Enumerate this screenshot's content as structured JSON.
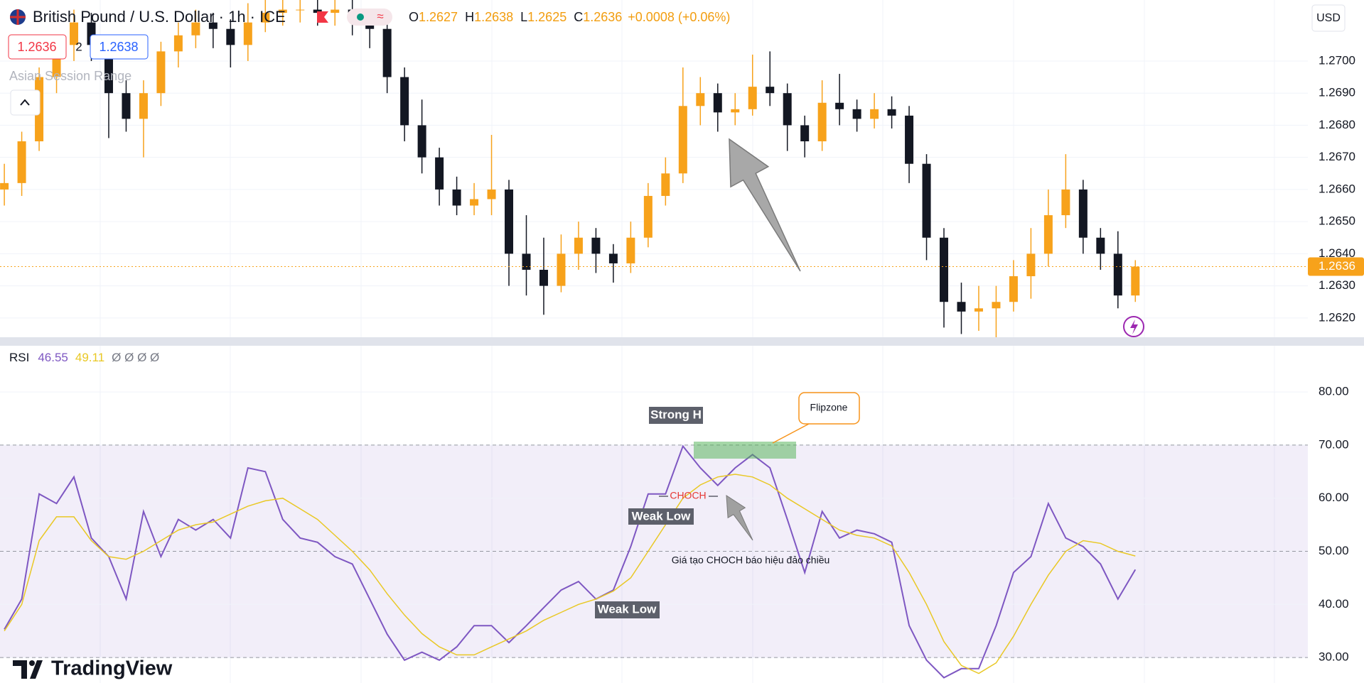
{
  "header": {
    "symbol": "British Pound / U.S. Dollar · 1h · ICE",
    "open_label": "O",
    "high_label": "H",
    "low_label": "L",
    "close_label": "C",
    "change": "+0.0008 (+0.06%)",
    "spread": "2",
    "buy": "1.2638",
    "indicator_name": "Asian Session Range",
    "currency": "USD"
  },
  "chart_data": [
    {
      "type": "candlestick",
      "up_color": "#f7a21b",
      "down_color": "#131722",
      "ylim": [
        1.2614,
        1.2719
      ],
      "grid": true,
      "yticks": [
        {
          "value": 1.262,
          "label": "1.2620"
        },
        {
          "value": 1.263,
          "label": "1.2630"
        },
        {
          "value": 1.264,
          "label": "1.2640"
        },
        {
          "value": 1.265,
          "label": "1.2650"
        },
        {
          "value": 1.266,
          "label": "1.2660"
        },
        {
          "value": 1.267,
          "label": "1.2670"
        },
        {
          "value": 1.268,
          "label": "1.2680"
        },
        {
          "value": 1.269,
          "label": "1.2690"
        },
        {
          "value": 1.27,
          "label": "1.2700"
        }
      ],
      "ohlc": [
        [
          1.266,
          1.2668,
          1.2655,
          1.2662
        ],
        [
          1.2662,
          1.2678,
          1.2658,
          1.2675
        ],
        [
          1.2675,
          1.2698,
          1.2672,
          1.2695
        ],
        [
          1.2695,
          1.2708,
          1.269,
          1.2705
        ],
        [
          1.2705,
          1.2716,
          1.27,
          1.2712
        ],
        [
          1.2712,
          1.2715,
          1.27,
          1.2705
        ],
        [
          1.2705,
          1.2708,
          1.2676,
          1.269
        ],
        [
          1.269,
          1.2694,
          1.2678,
          1.2682
        ],
        [
          1.2682,
          1.2694,
          1.267,
          1.269
        ],
        [
          1.269,
          1.2706,
          1.2686,
          1.2703
        ],
        [
          1.2703,
          1.2712,
          1.2698,
          1.2708
        ],
        [
          1.2708,
          1.2716,
          1.2704,
          1.2712
        ],
        [
          1.2712,
          1.2715,
          1.2704,
          1.271
        ],
        [
          1.271,
          1.2713,
          1.2698,
          1.2705
        ],
        [
          1.2705,
          1.2718,
          1.27,
          1.2712
        ],
        [
          1.2712,
          1.2722,
          1.2709,
          1.2715
        ],
        [
          1.2715,
          1.2722,
          1.2711,
          1.2716
        ],
        [
          1.2716,
          1.2722,
          1.2712,
          1.2716
        ],
        [
          1.2716,
          1.272,
          1.2711,
          1.2715
        ],
        [
          1.2715,
          1.2722,
          1.2711,
          1.2716
        ],
        [
          1.2716,
          1.2719,
          1.2708,
          1.2713
        ],
        [
          1.2713,
          1.2716,
          1.2704,
          1.271
        ],
        [
          1.271,
          1.2712,
          1.269,
          1.2695
        ],
        [
          1.2695,
          1.2698,
          1.2675,
          1.268
        ],
        [
          1.268,
          1.2688,
          1.2665,
          1.267
        ],
        [
          1.267,
          1.2673,
          1.2655,
          1.266
        ],
        [
          1.266,
          1.2664,
          1.2652,
          1.2655
        ],
        [
          1.2655,
          1.2662,
          1.2652,
          1.2657
        ],
        [
          1.2657,
          1.2677,
          1.2652,
          1.266
        ],
        [
          1.266,
          1.2663,
          1.263,
          1.264
        ],
        [
          1.264,
          1.2652,
          1.2627,
          1.2635
        ],
        [
          1.2635,
          1.2645,
          1.2621,
          1.263
        ],
        [
          1.263,
          1.2646,
          1.2628,
          1.264
        ],
        [
          1.264,
          1.265,
          1.2635,
          1.2645
        ],
        [
          1.2645,
          1.2648,
          1.2634,
          1.264
        ],
        [
          1.264,
          1.2643,
          1.2631,
          1.2637
        ],
        [
          1.2637,
          1.265,
          1.2634,
          1.2645
        ],
        [
          1.2645,
          1.2662,
          1.2642,
          1.2658
        ],
        [
          1.2658,
          1.267,
          1.2655,
          1.2665
        ],
        [
          1.2665,
          1.2698,
          1.2662,
          1.2686
        ],
        [
          1.2686,
          1.2695,
          1.268,
          1.269
        ],
        [
          1.269,
          1.2693,
          1.2678,
          1.2684
        ],
        [
          1.2684,
          1.269,
          1.268,
          1.2685
        ],
        [
          1.2685,
          1.2702,
          1.2683,
          1.2692
        ],
        [
          1.2692,
          1.2703,
          1.2686,
          1.269
        ],
        [
          1.269,
          1.2693,
          1.2672,
          1.268
        ],
        [
          1.268,
          1.2683,
          1.267,
          1.2675
        ],
        [
          1.2675,
          1.2694,
          1.2672,
          1.2687
        ],
        [
          1.2687,
          1.2696,
          1.268,
          1.2685
        ],
        [
          1.2685,
          1.2688,
          1.2678,
          1.2682
        ],
        [
          1.2682,
          1.269,
          1.2679,
          1.2685
        ],
        [
          1.2685,
          1.2689,
          1.2679,
          1.2683
        ],
        [
          1.2683,
          1.2686,
          1.2662,
          1.2668
        ],
        [
          1.2668,
          1.2671,
          1.2638,
          1.2645
        ],
        [
          1.2645,
          1.2648,
          1.2617,
          1.2625
        ],
        [
          1.2625,
          1.2631,
          1.2615,
          1.2622
        ],
        [
          1.2622,
          1.263,
          1.2616,
          1.2623
        ],
        [
          1.2623,
          1.263,
          1.2614,
          1.2625
        ],
        [
          1.2625,
          1.2638,
          1.2622,
          1.2633
        ],
        [
          1.2633,
          1.2648,
          1.2626,
          1.264
        ],
        [
          1.264,
          1.266,
          1.2636,
          1.2652
        ],
        [
          1.2652,
          1.2671,
          1.2648,
          1.266
        ],
        [
          1.266,
          1.2663,
          1.264,
          1.2645
        ],
        [
          1.2645,
          1.2648,
          1.2635,
          1.264
        ],
        [
          1.264,
          1.2647,
          1.2623,
          1.2627
        ],
        [
          1.2627,
          1.2638,
          1.2625,
          1.2636
        ]
      ]
    },
    {
      "type": "line",
      "title": "RSI",
      "placeholders": "Ø Ø Ø Ø",
      "ylim": [
        25.2,
        88.7
      ],
      "grid": true,
      "yticks": [
        {
          "value": 30,
          "label": "30.00"
        },
        {
          "value": 40,
          "label": "40.00"
        },
        {
          "value": 50,
          "label": "50.00"
        },
        {
          "value": 60,
          "label": "60.00"
        },
        {
          "value": 70,
          "label": "70.00"
        },
        {
          "value": 80,
          "label": "80.00"
        }
      ],
      "bands": {
        "upper": 70,
        "middle": 50,
        "lower": 30
      },
      "series": [
        {
          "color": "#7e57c2",
          "values": [
            35.3,
            41,
            60.8,
            59,
            64,
            52.5,
            49,
            41,
            57.5,
            49,
            56,
            54,
            56,
            52.5,
            65.7,
            65,
            56,
            52.5,
            51.7,
            49,
            47.6,
            41,
            34.4,
            29.5,
            31,
            29.5,
            32,
            36,
            36,
            32.8,
            36,
            39.4,
            42.7,
            44.3,
            41,
            42.7,
            50.9,
            60.8,
            60.8,
            69.8,
            65.7,
            62.4,
            65.7,
            68.2,
            65.7,
            56,
            46,
            57.5,
            52.5,
            54,
            53.3,
            51.7,
            36,
            29.5,
            26.2,
            27.9,
            27.9,
            36,
            46,
            49,
            59,
            52.5,
            50.9,
            47.6,
            41,
            46.55
          ]
        },
        {
          "color": "#e9c825",
          "values": [
            35,
            40,
            52,
            56.5,
            56.5,
            52,
            49,
            48.5,
            50,
            52,
            54,
            55,
            55.5,
            57,
            58.5,
            59.5,
            60,
            58,
            56,
            53,
            50,
            46.5,
            42,
            38,
            34.5,
            32,
            30.5,
            30.5,
            32,
            33.5,
            35,
            37,
            38.5,
            40,
            41,
            42.5,
            45,
            50,
            55,
            60,
            62.5,
            64,
            64.5,
            64,
            62.5,
            60,
            58,
            56,
            54,
            53,
            52.5,
            51,
            46,
            40,
            33,
            28.5,
            27,
            29,
            34,
            40,
            45.5,
            50,
            52,
            51.5,
            50,
            49.11
          ]
        }
      ]
    }
  ],
  "annotations": {
    "strong_high": "Strong H",
    "weak_low_1": "Weak Low",
    "weak_low_2": "Weak Low",
    "choch": "CHOCH",
    "flipzone": "Flipzone",
    "note": "Giá tạo CHOCH báo hiệu đảo chiều"
  },
  "branding": "TradingView"
}
